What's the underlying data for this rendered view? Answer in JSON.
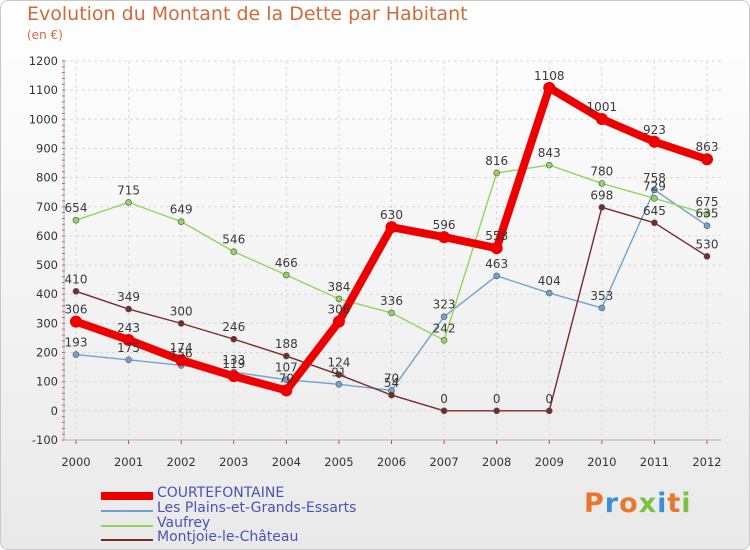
{
  "title": "Evolution du Montant de la Dette par Habitant",
  "unit": "(en €)",
  "brand": {
    "text": "Proxiti",
    "letters": [
      {
        "ch": "P",
        "color": "#e8772e"
      },
      {
        "ch": "r",
        "color": "#3b8fd9"
      },
      {
        "ch": "o",
        "color": "#e8772e"
      },
      {
        "ch": "x",
        "color": "#7cc242"
      },
      {
        "ch": "i",
        "color": "#3b8fd9"
      },
      {
        "ch": "t",
        "color": "#e8772e"
      },
      {
        "ch": "i",
        "color": "#7cc242"
      }
    ]
  },
  "chart_data": {
    "type": "line",
    "x": [
      "2000",
      "2001",
      "2002",
      "2003",
      "2004",
      "2005",
      "2006",
      "2007",
      "2008",
      "2009",
      "2010",
      "2011",
      "2012"
    ],
    "ylim": [
      -100,
      1200
    ],
    "yticks": [
      -100,
      0,
      100,
      200,
      300,
      400,
      500,
      600,
      700,
      800,
      900,
      1000,
      1100,
      1200
    ],
    "grid": true,
    "legend_position": "bottom-left",
    "series": [
      {
        "name": "COURTEFONTAINE",
        "color": "#ee0000",
        "width": 8,
        "marker": 6,
        "values": [
          306,
          243,
          174,
          119,
          70,
          306,
          630,
          596,
          558,
          1108,
          1001,
          923,
          863
        ],
        "labels": [
          "306",
          "243",
          "174",
          "119",
          "70",
          "306",
          "630",
          "596",
          "558",
          "1108",
          "1001",
          "923",
          "863"
        ]
      },
      {
        "name": "Les Plains-et-Grands-Essarts",
        "color": "#6fa2d4",
        "width": 1.4,
        "marker": 3,
        "values": [
          193,
          175,
          156,
          133,
          107,
          91,
          70,
          323,
          463,
          404,
          353,
          758,
          635
        ],
        "labels": [
          "193",
          "175",
          "156",
          "133",
          "107",
          "91",
          "70",
          "323",
          "463",
          "404",
          "353",
          "758",
          "635"
        ]
      },
      {
        "name": "Vaufrey",
        "color": "#90d65c",
        "width": 1.4,
        "marker": 3,
        "values": [
          654,
          715,
          649,
          546,
          466,
          384,
          336,
          242,
          816,
          843,
          780,
          729,
          675
        ],
        "labels": [
          "654",
          "715",
          "649",
          "546",
          "466",
          "384",
          "336",
          "242",
          "816",
          "843",
          "780",
          "729",
          "675"
        ]
      },
      {
        "name": "Montjoie-le-Château",
        "color": "#7a2a2a",
        "width": 1.4,
        "marker": 3,
        "values": [
          410,
          349,
          300,
          246,
          188,
          124,
          54,
          0,
          0,
          0,
          698,
          645,
          530
        ],
        "labels": [
          "410",
          "349",
          "300",
          "246",
          "188",
          "124",
          "54",
          "0",
          "0",
          "0",
          "698",
          "645",
          "530"
        ]
      }
    ]
  }
}
